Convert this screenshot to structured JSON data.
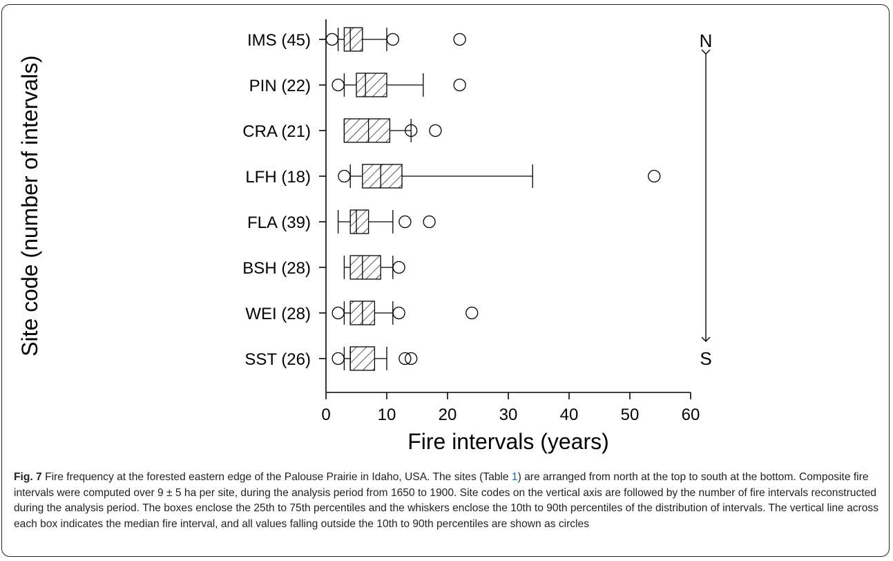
{
  "chart_data": {
    "type": "boxplot",
    "orientation": "horizontal",
    "xlabel": "Fire intervals (years)",
    "ylabel": "Site code (number of intervals)",
    "xlim": [
      0,
      60
    ],
    "xticks": [
      0,
      10,
      20,
      30,
      40,
      50,
      60
    ],
    "direction_labels": {
      "north": "N",
      "south": "S"
    },
    "sites": [
      {
        "label": "IMS (45)",
        "p10": 2,
        "q1": 3,
        "median": 4,
        "q3": 6,
        "p90": 10,
        "outliers": [
          1,
          11,
          22
        ]
      },
      {
        "label": "PIN (22)",
        "p10": 3,
        "q1": 5,
        "median": 6.5,
        "q3": 10,
        "p90": 16,
        "outliers": [
          2,
          22
        ]
      },
      {
        "label": "CRA (21)",
        "p10": 3,
        "q1": 3,
        "median": 7,
        "q3": 10.5,
        "p90": 14,
        "outliers": [
          14,
          18
        ]
      },
      {
        "label": "LFH (18)",
        "p10": 4,
        "q1": 6,
        "median": 9,
        "q3": 12.5,
        "p90": 34,
        "outliers": [
          3,
          54
        ]
      },
      {
        "label": "FLA (39)",
        "p10": 2,
        "q1": 4,
        "median": 5,
        "q3": 7,
        "p90": 11,
        "outliers": [
          13,
          17
        ]
      },
      {
        "label": "BSH (28)",
        "p10": 3,
        "q1": 4,
        "median": 6,
        "q3": 9,
        "p90": 11,
        "outliers": [
          12
        ]
      },
      {
        "label": "WEI (28)",
        "p10": 3,
        "q1": 4,
        "median": 6,
        "q3": 8,
        "p90": 11,
        "outliers": [
          2,
          12,
          24
        ]
      },
      {
        "label": "SST (26)",
        "p10": 3,
        "q1": 4,
        "median": 4,
        "q3": 8,
        "p90": 10,
        "outliers": [
          2,
          13,
          14
        ]
      }
    ],
    "grid": false
  },
  "caption": {
    "fig_label": "Fig. 7",
    "text_before_ref": " Fire frequency at the forested eastern edge of the Palouse Prairie in Idaho, USA. The sites (Table ",
    "table_ref": "1",
    "text_after_ref": ") are arranged from north at the top to south at the bottom. Composite fire intervals were computed over 9 ± 5 ha per site, during the analysis period from 1650 to 1900. Site codes on the vertical axis are followed by the number of fire intervals reconstructed during the analysis period. The boxes enclose the 25th to 75th percentiles and the whiskers enclose the 10th to 90th percentiles of the distribution of intervals. The vertical line across each box indicates the median fire interval, and all values falling outside the 10th to 90th percentiles are shown as circles"
  }
}
